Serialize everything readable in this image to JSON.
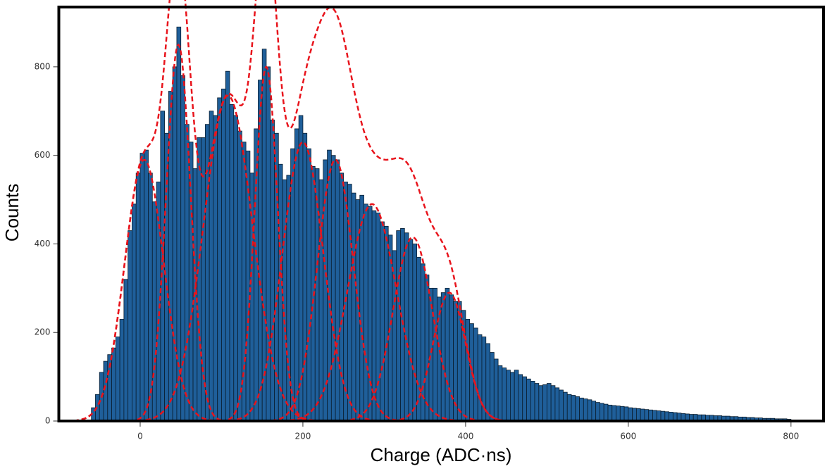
{
  "chart_data": {
    "type": "histogram",
    "xlabel": "Charge (ADC·ns)",
    "ylabel": "Counts",
    "color": "#1f5f9a",
    "fit_color": "#e8141c",
    "xlim": [
      -100,
      840
    ],
    "ylim": [
      0,
      935
    ],
    "xticks": [
      0,
      200,
      400,
      600,
      800
    ],
    "yticks": [
      0,
      200,
      400,
      600,
      800
    ],
    "bins": [
      -60,
      -55,
      -50,
      -45,
      -40,
      -35,
      -30,
      -25,
      -20,
      -15,
      -10,
      -5,
      0,
      5,
      10,
      15,
      20,
      25,
      30,
      35,
      40,
      45,
      50,
      55,
      60,
      65,
      70,
      75,
      80,
      85,
      90,
      95,
      100,
      105,
      110,
      115,
      120,
      125,
      130,
      135,
      140,
      145,
      150,
      155,
      160,
      165,
      170,
      175,
      180,
      185,
      190,
      195,
      200,
      205,
      210,
      215,
      220,
      225,
      230,
      235,
      240,
      245,
      250,
      255,
      260,
      265,
      270,
      275,
      280,
      285,
      290,
      295,
      300,
      305,
      310,
      315,
      320,
      325,
      330,
      335,
      340,
      345,
      350,
      355,
      360,
      365,
      370,
      375,
      380,
      385,
      390,
      395,
      400,
      405,
      410,
      415,
      420,
      425,
      430,
      435,
      440,
      445,
      450,
      455,
      460,
      465,
      470,
      475,
      480,
      485,
      490,
      495,
      500,
      505,
      510,
      515,
      520,
      525,
      530,
      535,
      540,
      545,
      550,
      555,
      560,
      565,
      570,
      575,
      580,
      585,
      590,
      595,
      600,
      605,
      610,
      615,
      620,
      625,
      630,
      635,
      640,
      645,
      650,
      655,
      660,
      665,
      670,
      675,
      680,
      685,
      690,
      695,
      700,
      705,
      710,
      715,
      720,
      725,
      730,
      735,
      740,
      745,
      750,
      755,
      760,
      765,
      770,
      775,
      780,
      785,
      790,
      795,
      800
    ],
    "values": [
      30,
      60,
      110,
      135,
      150,
      165,
      190,
      230,
      320,
      430,
      490,
      560,
      605,
      612,
      560,
      495,
      540,
      700,
      650,
      745,
      800,
      890,
      780,
      670,
      630,
      570,
      640,
      640,
      670,
      700,
      690,
      730,
      750,
      790,
      715,
      690,
      655,
      630,
      610,
      560,
      660,
      770,
      840,
      800,
      680,
      650,
      580,
      545,
      555,
      615,
      660,
      690,
      650,
      615,
      575,
      570,
      545,
      590,
      612,
      600,
      590,
      560,
      540,
      535,
      515,
      500,
      510,
      490,
      485,
      475,
      470,
      450,
      440,
      420,
      385,
      430,
      435,
      425,
      410,
      400,
      370,
      355,
      330,
      300,
      300,
      280,
      290,
      300,
      285,
      270,
      270,
      250,
      230,
      220,
      210,
      195,
      190,
      175,
      155,
      140,
      125,
      120,
      115,
      110,
      115,
      105,
      100,
      95,
      90,
      85,
      80,
      82,
      85,
      80,
      75,
      70,
      65,
      60,
      58,
      55,
      52,
      50,
      48,
      45,
      42,
      40,
      38,
      36,
      35,
      34,
      33,
      32,
      30,
      29,
      28,
      27,
      26,
      25,
      24,
      23,
      22,
      21,
      20,
      19,
      18,
      17,
      16,
      15,
      15,
      14,
      14,
      13,
      13,
      12,
      12,
      11,
      11,
      10,
      10,
      9,
      9,
      8,
      8,
      7,
      7,
      6,
      6,
      6,
      5,
      5,
      5,
      4
    ],
    "fits": [
      {
        "mean": 5,
        "sigma": 24,
        "amplitude": 590
      },
      {
        "mean": 47,
        "sigma": 15,
        "amplitude": 850
      },
      {
        "mean": 108,
        "sigma": 30,
        "amplitude": 735
      },
      {
        "mean": 155,
        "sigma": 14,
        "amplitude": 800
      },
      {
        "mean": 200,
        "sigma": 25,
        "amplitude": 630
      },
      {
        "mean": 240,
        "sigma": 22,
        "amplitude": 590
      },
      {
        "mean": 285,
        "sigma": 30,
        "amplitude": 490
      },
      {
        "mean": 335,
        "sigma": 24,
        "amplitude": 415
      },
      {
        "mean": 380,
        "sigma": 20,
        "amplitude": 290
      }
    ]
  }
}
